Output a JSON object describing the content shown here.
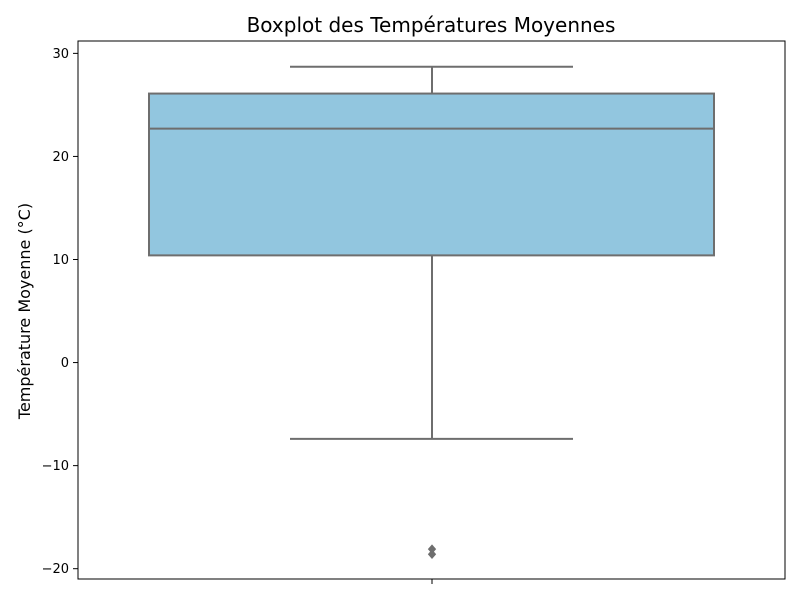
{
  "chart_data": {
    "type": "boxplot",
    "title": "Boxplot des Températures Moyennes",
    "xlabel": "",
    "ylabel": "Température Moyenne (°C)",
    "ylim": [
      -21,
      31.2
    ],
    "yticks": [
      -20,
      -10,
      0,
      10,
      20,
      30
    ],
    "ytick_labels": [
      "−20",
      "−10",
      "0",
      "10",
      "20",
      "30"
    ],
    "grid": false,
    "box": {
      "whisker_low": -7.4,
      "q1": 10.4,
      "median": 22.7,
      "q3": 26.1,
      "whisker_high": 28.7
    },
    "outliers": [
      -18.1,
      -18.6
    ],
    "colors": {
      "box_fill": "#92c6df",
      "box_edge": "#6e6e6e",
      "axis": "#000000"
    }
  }
}
